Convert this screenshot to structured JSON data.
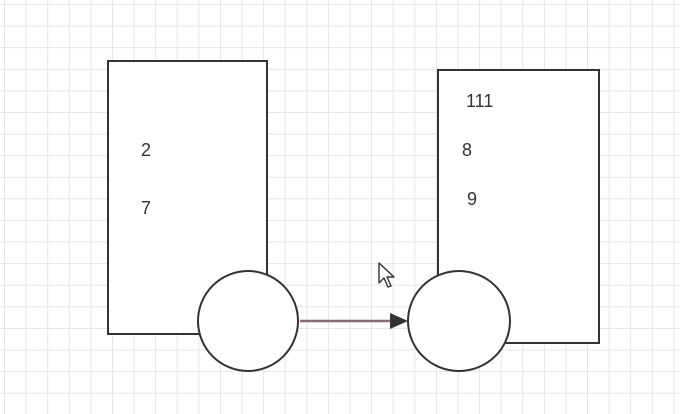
{
  "diagram": {
    "left_box": {
      "values": [
        "2",
        "7"
      ]
    },
    "right_box": {
      "values": [
        "111",
        "8",
        "9"
      ]
    },
    "connector": {
      "from": "left_circle",
      "to": "right_circle",
      "color": "#8a6a6e"
    },
    "cursor_icon": "mouse-pointer-icon"
  }
}
